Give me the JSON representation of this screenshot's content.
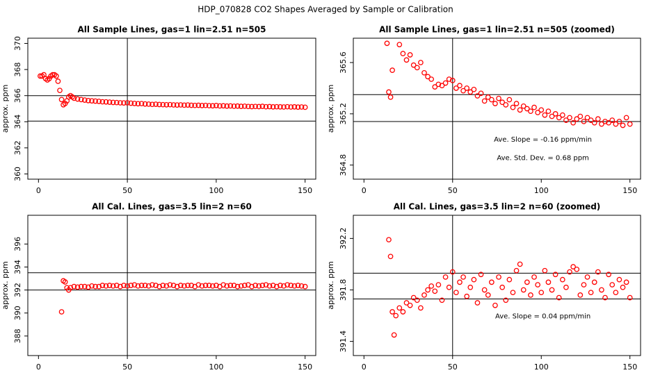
{
  "title": "HDP_070828  CO2 Shapes Averaged by Sample or Calibration",
  "chart_data": [
    {
      "type": "scatter",
      "title": "All Sample Lines, gas=1 lin=2.51 n=505",
      "ylabel": "approx. ppm",
      "color": "#ff0000",
      "xlim": [
        -6,
        156
      ],
      "xticks": [
        0,
        50,
        100,
        150
      ],
      "ylim": [
        359.6,
        370.4
      ],
      "yticks": [
        360,
        362,
        364,
        366,
        368,
        370
      ],
      "hlines": [
        366.0,
        364.05
      ],
      "vlines": [
        50
      ],
      "x": [
        1,
        2,
        3,
        4,
        5,
        6,
        7,
        8,
        9,
        10,
        11,
        12,
        13,
        14,
        15,
        16,
        17,
        18,
        19,
        20,
        22,
        24,
        26,
        28,
        30,
        32,
        34,
        36,
        38,
        40,
        42,
        44,
        46,
        48,
        50,
        52,
        54,
        56,
        58,
        60,
        62,
        64,
        66,
        68,
        70,
        72,
        74,
        76,
        78,
        80,
        82,
        84,
        86,
        88,
        90,
        92,
        94,
        96,
        98,
        100,
        102,
        104,
        106,
        108,
        110,
        112,
        114,
        116,
        118,
        120,
        122,
        124,
        126,
        128,
        130,
        132,
        134,
        136,
        138,
        140,
        142,
        144,
        146,
        148,
        150
      ],
      "values": [
        367.5,
        367.5,
        367.6,
        367.3,
        367.2,
        367.3,
        367.5,
        367.6,
        367.6,
        367.5,
        367.1,
        366.4,
        365.7,
        365.3,
        365.4,
        365.6,
        365.9,
        366.0,
        365.9,
        365.8,
        365.74,
        365.7,
        365.66,
        365.62,
        365.6,
        365.58,
        365.56,
        365.53,
        365.52,
        365.5,
        365.48,
        365.47,
        365.45,
        365.44,
        365.45,
        365.42,
        365.4,
        365.38,
        365.39,
        365.36,
        365.35,
        365.33,
        365.34,
        365.32,
        365.31,
        365.3,
        365.31,
        365.29,
        365.28,
        365.29,
        365.27,
        365.28,
        365.26,
        365.25,
        365.26,
        365.24,
        365.25,
        365.23,
        365.22,
        365.24,
        365.21,
        365.22,
        365.2,
        365.21,
        365.19,
        365.2,
        365.18,
        365.19,
        365.17,
        365.16,
        365.17,
        365.16,
        365.18,
        365.15,
        365.16,
        365.14,
        365.15,
        365.14,
        365.13,
        365.15,
        365.13,
        365.14,
        365.12,
        365.13,
        365.11
      ]
    },
    {
      "type": "scatter",
      "title": "All Sample Lines, gas=1 lin=2.51 n=505 (zoomed)",
      "ylabel": "approx. ppm",
      "color": "#ff0000",
      "xlim": [
        -6,
        156
      ],
      "xticks": [
        0,
        50,
        100,
        150
      ],
      "ylim": [
        364.69,
        365.79
      ],
      "yticks": [
        364.8,
        365.2,
        365.6
      ],
      "hlines": [
        365.35,
        365.14
      ],
      "vlines": [
        50
      ],
      "annotations": [
        "Ave. Slope =  -0.16  ppm/min",
        "Ave. Std. Dev. =  0.68  ppm"
      ],
      "x": [
        13,
        14,
        15,
        16,
        20,
        22,
        24,
        26,
        28,
        30,
        32,
        34,
        36,
        38,
        40,
        42,
        44,
        46,
        48,
        50,
        52,
        54,
        56,
        58,
        60,
        62,
        64,
        66,
        68,
        70,
        72,
        74,
        76,
        78,
        80,
        82,
        84,
        86,
        88,
        90,
        92,
        94,
        96,
        98,
        100,
        102,
        104,
        106,
        108,
        110,
        112,
        114,
        116,
        118,
        120,
        122,
        124,
        126,
        128,
        130,
        132,
        134,
        136,
        138,
        140,
        142,
        144,
        146,
        148,
        150
      ],
      "values": [
        365.75,
        365.37,
        365.33,
        365.54,
        365.74,
        365.67,
        365.62,
        365.66,
        365.58,
        365.56,
        365.6,
        365.52,
        365.49,
        365.47,
        365.41,
        365.43,
        365.42,
        365.44,
        365.47,
        365.46,
        365.4,
        365.42,
        365.38,
        365.4,
        365.37,
        365.39,
        365.34,
        365.36,
        365.3,
        365.33,
        365.31,
        365.28,
        365.32,
        365.29,
        365.27,
        365.31,
        365.25,
        365.28,
        365.23,
        365.26,
        365.24,
        365.22,
        365.25,
        365.21,
        365.23,
        365.19,
        365.22,
        365.18,
        365.2,
        365.17,
        365.19,
        365.15,
        365.17,
        365.13,
        365.16,
        365.18,
        365.14,
        365.17,
        365.15,
        365.13,
        365.16,
        365.12,
        365.14,
        365.13,
        365.15,
        365.12,
        365.14,
        365.11,
        365.17,
        365.12
      ]
    },
    {
      "type": "scatter",
      "title": "All Cal. Lines, gas=3.5 lin=2 n=60",
      "ylabel": "approx. ppm",
      "color": "#ff0000",
      "xlim": [
        -6,
        156
      ],
      "xticks": [
        0,
        50,
        100,
        150
      ],
      "ylim": [
        386.3,
        398.5
      ],
      "yticks": [
        388,
        390,
        392,
        394,
        396
      ],
      "hlines": [
        393.5,
        392.0
      ],
      "vlines": [
        50
      ],
      "x": [
        13,
        14,
        15,
        16,
        17,
        18,
        20,
        22,
        24,
        26,
        28,
        30,
        32,
        34,
        36,
        38,
        40,
        42,
        44,
        46,
        48,
        50,
        52,
        54,
        56,
        58,
        60,
        62,
        64,
        66,
        68,
        70,
        72,
        74,
        76,
        78,
        80,
        82,
        84,
        86,
        88,
        90,
        92,
        94,
        96,
        98,
        100,
        102,
        104,
        106,
        108,
        110,
        112,
        114,
        116,
        118,
        120,
        122,
        124,
        126,
        128,
        130,
        132,
        134,
        136,
        138,
        140,
        142,
        144,
        146,
        148,
        150
      ],
      "values": [
        390.1,
        392.8,
        392.7,
        392.2,
        392.0,
        392.2,
        392.3,
        392.25,
        392.3,
        392.3,
        392.25,
        392.35,
        392.3,
        392.3,
        392.4,
        392.35,
        392.4,
        392.35,
        392.4,
        392.3,
        392.4,
        392.35,
        392.4,
        392.45,
        392.35,
        392.4,
        392.4,
        392.35,
        392.45,
        392.4,
        392.3,
        392.4,
        392.35,
        392.45,
        392.4,
        392.3,
        392.4,
        392.35,
        392.4,
        392.4,
        392.3,
        392.45,
        392.35,
        392.4,
        392.4,
        392.35,
        392.4,
        392.3,
        392.45,
        392.35,
        392.4,
        392.4,
        392.3,
        392.35,
        392.4,
        392.45,
        392.3,
        392.4,
        392.35,
        392.4,
        392.45,
        392.35,
        392.4,
        392.3,
        392.4,
        392.35,
        392.45,
        392.4,
        392.35,
        392.4,
        392.35,
        392.3
      ]
    },
    {
      "type": "scatter",
      "title": "All Cal. Lines, gas=3.5 lin=2 n=60 (zoomed)",
      "ylabel": "approx. ppm",
      "color": "#ff0000",
      "xlim": [
        -6,
        156
      ],
      "xticks": [
        0,
        50,
        100,
        150
      ],
      "ylim": [
        391.29,
        392.38
      ],
      "yticks": [
        391.4,
        391.8,
        392.2
      ],
      "hlines": [
        391.93,
        391.73
      ],
      "vlines": [
        50
      ],
      "annotations": [
        "Ave. Slope =  0.04  ppm/min"
      ],
      "x": [
        14,
        15,
        16,
        17,
        18,
        20,
        22,
        24,
        26,
        28,
        30,
        32,
        34,
        36,
        38,
        40,
        42,
        44,
        46,
        48,
        50,
        52,
        54,
        56,
        58,
        60,
        62,
        64,
        66,
        68,
        70,
        72,
        74,
        76,
        78,
        80,
        82,
        84,
        86,
        88,
        90,
        92,
        94,
        96,
        98,
        100,
        102,
        104,
        106,
        108,
        110,
        112,
        114,
        116,
        118,
        120,
        122,
        124,
        126,
        128,
        130,
        132,
        134,
        136,
        138,
        140,
        142,
        144,
        146,
        148,
        150
      ],
      "values": [
        392.19,
        392.06,
        391.63,
        391.45,
        391.6,
        391.66,
        391.63,
        391.7,
        391.68,
        391.74,
        391.72,
        391.66,
        391.76,
        391.8,
        391.83,
        391.79,
        391.84,
        391.72,
        391.9,
        391.82,
        391.94,
        391.78,
        391.86,
        391.9,
        391.75,
        391.82,
        391.88,
        391.7,
        391.92,
        391.8,
        391.76,
        391.86,
        391.68,
        391.9,
        391.82,
        391.72,
        391.88,
        391.78,
        391.95,
        392.0,
        391.8,
        391.86,
        391.76,
        391.9,
        391.84,
        391.78,
        391.95,
        391.86,
        391.8,
        391.92,
        391.74,
        391.88,
        391.82,
        391.94,
        391.98,
        391.96,
        391.76,
        391.84,
        391.9,
        391.78,
        391.86,
        391.94,
        391.8,
        391.74,
        391.92,
        391.84,
        391.78,
        391.88,
        391.82,
        391.86,
        391.74
      ]
    }
  ]
}
